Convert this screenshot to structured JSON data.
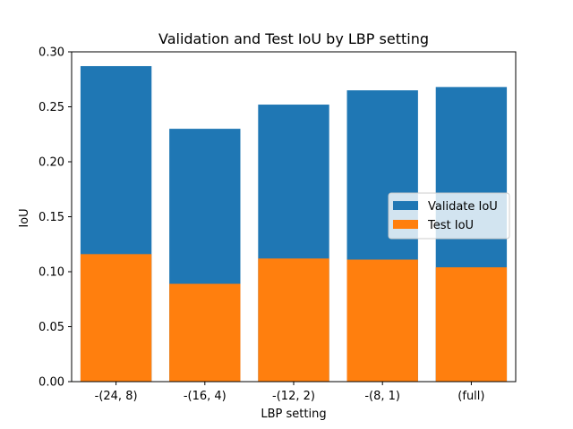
{
  "chart_data": {
    "type": "bar",
    "title": "Validation and Test IoU by LBP setting",
    "xlabel": "LBP setting",
    "ylabel": "IoU",
    "categories": [
      "-(24, 8)",
      "-(16, 4)",
      "-(12, 2)",
      "-(8, 1)",
      "(full)"
    ],
    "series": [
      {
        "name": "Validate IoU",
        "color": "#1f77b4",
        "values": [
          0.287,
          0.23,
          0.252,
          0.265,
          0.268
        ]
      },
      {
        "name": "Test IoU",
        "color": "#ff7f0e",
        "values": [
          0.116,
          0.089,
          0.112,
          0.111,
          0.104
        ]
      }
    ],
    "ylim": [
      0,
      0.3
    ],
    "yticks": [
      "0.00",
      "0.05",
      "0.10",
      "0.15",
      "0.20",
      "0.25",
      "0.30"
    ],
    "grid": false,
    "legend_position": "center-right",
    "bar_mode": "overlaid"
  }
}
